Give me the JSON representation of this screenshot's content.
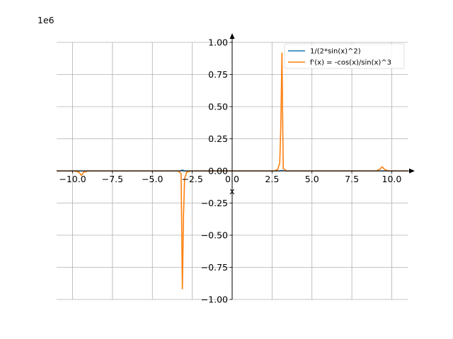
{
  "chart_data": {
    "type": "line",
    "scale_label": "1e6",
    "xlabel": "x",
    "ylabel": "",
    "xlim": [
      -11,
      11
    ],
    "ylim": [
      -1.0,
      1.0
    ],
    "grid": true,
    "legend_position": "top-right",
    "x_ticks": [
      {
        "value": -10.0,
        "label": "−10.0"
      },
      {
        "value": -7.5,
        "label": "−7.5"
      },
      {
        "value": -5.0,
        "label": "−5.0"
      },
      {
        "value": -2.5,
        "label": "−2.5"
      },
      {
        "value": 0.0,
        "label": "0.0"
      },
      {
        "value": 2.5,
        "label": "2.5"
      },
      {
        "value": 5.0,
        "label": "5.0"
      },
      {
        "value": 7.5,
        "label": "7.5"
      },
      {
        "value": 10.0,
        "label": "10.0"
      }
    ],
    "y_ticks": [
      {
        "value": 1.0,
        "label": "1.00"
      },
      {
        "value": 0.75,
        "label": "0.75"
      },
      {
        "value": 0.5,
        "label": "0.50"
      },
      {
        "value": 0.25,
        "label": "0.25"
      },
      {
        "value": 0.0,
        "label": "0.00"
      },
      {
        "value": -0.25,
        "label": "−0.25"
      },
      {
        "value": -0.5,
        "label": "−0.50"
      },
      {
        "value": -0.75,
        "label": "−0.75"
      },
      {
        "value": -1.0,
        "label": "−1.00"
      }
    ],
    "series": [
      {
        "name": "1/(2*sin(x)^2)",
        "color": "#1f77b4",
        "segments": [
          [
            [
              -11.0,
              0.0
            ],
            [
              -3.3,
              0.0
            ],
            [
              -3.1,
              0.006
            ],
            [
              -2.98,
              0.0
            ],
            [
              3.0,
              0.0
            ],
            [
              3.1,
              0.004
            ],
            [
              3.3,
              0.0
            ],
            [
              11.0,
              0.0
            ]
          ]
        ]
      },
      {
        "name": "f'(x) = -cos(x)/sin(x)^3",
        "color": "#ff7f0e",
        "segments": [
          [
            [
              -11.0,
              0.0
            ],
            [
              -9.9,
              0.0
            ],
            [
              -9.6,
              -0.01
            ],
            [
              -9.45,
              -0.035
            ],
            [
              -9.3,
              -0.01
            ],
            [
              -9.0,
              0.0
            ],
            [
              -3.4,
              0.0
            ],
            [
              -3.2,
              -0.02
            ],
            [
              -3.12,
              -0.92
            ]
          ],
          [
            [
              -3.12,
              -0.92
            ],
            [
              -3.05,
              -0.35
            ],
            [
              -2.98,
              -0.06
            ],
            [
              -2.85,
              -0.01
            ],
            [
              -2.6,
              0.0
            ],
            [
              2.6,
              0.0
            ],
            [
              2.85,
              0.01
            ],
            [
              2.98,
              0.06
            ],
            [
              3.05,
              0.35
            ],
            [
              3.12,
              0.92
            ]
          ],
          [
            [
              3.12,
              0.92
            ],
            [
              3.2,
              0.02
            ],
            [
              3.4,
              0.0
            ],
            [
              9.0,
              0.0
            ],
            [
              9.25,
              0.012
            ],
            [
              9.4,
              0.032
            ],
            [
              9.55,
              0.012
            ],
            [
              9.8,
              0.0
            ],
            [
              11.0,
              0.0
            ]
          ]
        ]
      }
    ]
  }
}
